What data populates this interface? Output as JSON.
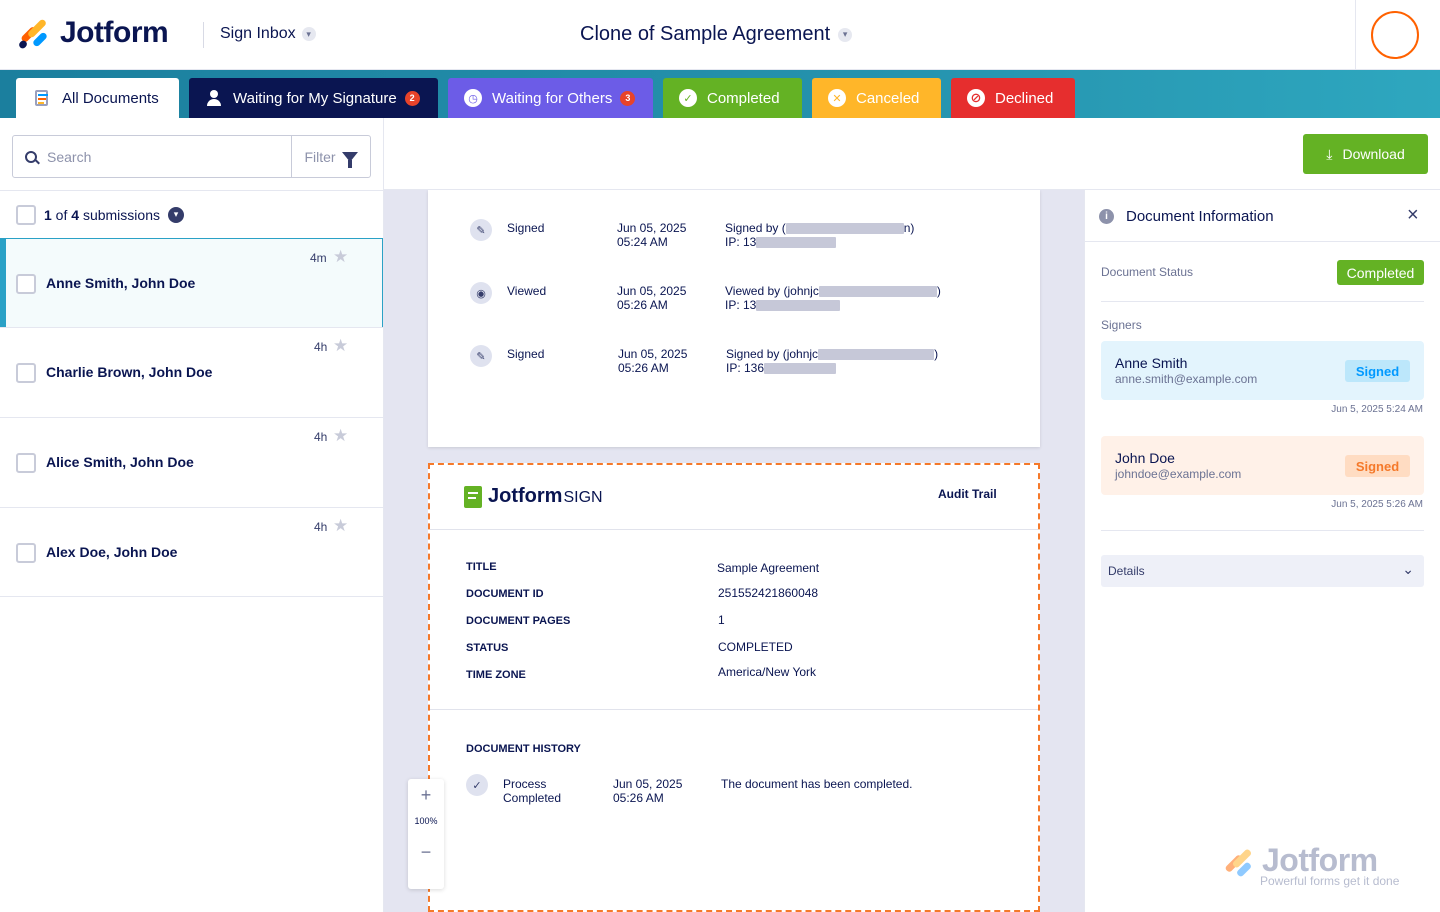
{
  "header": {
    "brand": "Jotform",
    "inbox_label": "Sign Inbox",
    "document_title": "Clone of Sample Agreement"
  },
  "tabs": [
    {
      "label": "All Documents"
    },
    {
      "label": "Waiting for My Signature",
      "badge": "2"
    },
    {
      "label": "Waiting for Others",
      "badge": "3"
    },
    {
      "label": "Completed"
    },
    {
      "label": "Canceled"
    },
    {
      "label": "Declined"
    }
  ],
  "colors": {
    "accent_teal": "#2aa1c6",
    "tab_dark": "#0a1551",
    "tab_purple": "#6c5ce7",
    "tab_green": "#64b224",
    "tab_yellow": "#ffb629",
    "tab_red": "#e62e2e",
    "brand_orange": "#ff6100"
  },
  "sidebar": {
    "search_placeholder": "Search",
    "filter_label": "Filter",
    "count_current": "1",
    "count_of": " of ",
    "count_total": "4",
    "count_suffix": " submissions",
    "rows": [
      {
        "names": "Anne Smith, John Doe",
        "age": "4m"
      },
      {
        "names": "Charlie Brown, John Doe",
        "age": "4h"
      },
      {
        "names": "Alice Smith, John Doe",
        "age": "4h"
      },
      {
        "names": "Alex Doe, John Doe",
        "age": "4h"
      }
    ]
  },
  "toolbar": {
    "download_label": "Download"
  },
  "page1_history": [
    {
      "action": "Signed",
      "date": "Jun 05, 2025",
      "time": "05:24 AM",
      "detail_prefix": "Signed by (",
      "detail_suffix": "n)",
      "ip_prefix": "IP: 13",
      "icon": "pen-icon"
    },
    {
      "action": "Viewed",
      "date": "Jun 05, 2025",
      "time": "05:26 AM",
      "detail_prefix": "Viewed by (johnjc",
      "detail_suffix": ")",
      "ip_prefix": "IP: 13",
      "icon": "eye-icon"
    },
    {
      "action": "Signed",
      "date": "Jun 05, 2025",
      "time": "05:26 AM",
      "detail_prefix": "Signed by (johnjc",
      "detail_suffix": ")",
      "ip_prefix": "IP: 136",
      "icon": "pen-icon"
    }
  ],
  "audit": {
    "brand_main": "Jotform",
    "brand_sign": "SIGN",
    "heading": "Audit Trail",
    "fields": [
      {
        "label": "TITLE",
        "value": "Sample Agreement"
      },
      {
        "label": "DOCUMENT ID",
        "value": "251552421860048"
      },
      {
        "label": "DOCUMENT PAGES",
        "value": "1"
      },
      {
        "label": "STATUS",
        "value": "COMPLETED"
      },
      {
        "label": "TIME ZONE",
        "value": "America/New York"
      }
    ],
    "history_heading": "DOCUMENT HISTORY",
    "history": {
      "action_line1": "Process",
      "action_line2": "Completed",
      "date": "Jun 05, 2025",
      "time": "05:26 AM",
      "detail": "The document has been completed."
    }
  },
  "zoom": {
    "level": "100%",
    "plus": "+",
    "minus": "−"
  },
  "info_panel": {
    "title": "Document Information",
    "status_label": "Document Status",
    "status_value": "Completed",
    "signers_label": "Signers",
    "signers": [
      {
        "name": "Anne Smith",
        "email": "anne.smith@example.com",
        "status": "Signed",
        "time": "Jun 5, 2025 5:24 AM"
      },
      {
        "name": "John Doe",
        "email": "johndoe@example.com",
        "status": "Signed",
        "time": "Jun 5, 2025 5:26 AM"
      }
    ],
    "details_label": "Details"
  },
  "watermark": {
    "brand": "Jotform",
    "tagline": "Powerful forms get it done"
  }
}
